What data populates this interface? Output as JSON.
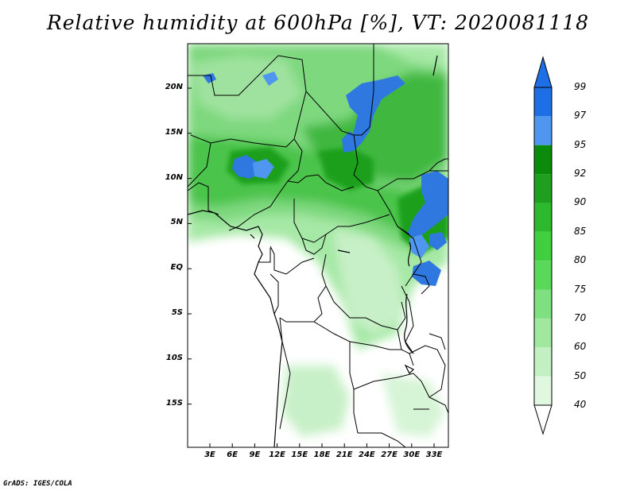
{
  "title": "Relative humidity at 600hPa [%], VT: 2020081118",
  "credit": "GrADS: IGES/COLA",
  "lat_labels": [
    "20N",
    "15N",
    "10N",
    "5N",
    "EQ",
    "5S",
    "10S",
    "15S"
  ],
  "lon_labels": [
    "3E",
    "6E",
    "9E",
    "12E",
    "15E",
    "18E",
    "21E",
    "24E",
    "27E",
    "30E",
    "33E"
  ],
  "colorbar": {
    "levels": [
      "99",
      "97",
      "95",
      "92",
      "90",
      "85",
      "80",
      "75",
      "70",
      "60",
      "50",
      "40"
    ],
    "colors": [
      "#1e6ee6",
      "#4e96f0",
      "#0a8c0a",
      "#1ea01e",
      "#2db92d",
      "#3fcf3f",
      "#5ad85a",
      "#7ee07e",
      "#a0e8a0",
      "#c2f0c2",
      "#e0f8e0",
      "#ffffff"
    ],
    "low_color": "#ffffff",
    "high_color": "#1e6ee6"
  },
  "colors": {
    "background": "#ffffff",
    "border": "#000000",
    "humid_core": "#1e6ee6",
    "wet": "#2db92d",
    "moist": "#8fe08f",
    "dry": "#ffffff"
  }
}
